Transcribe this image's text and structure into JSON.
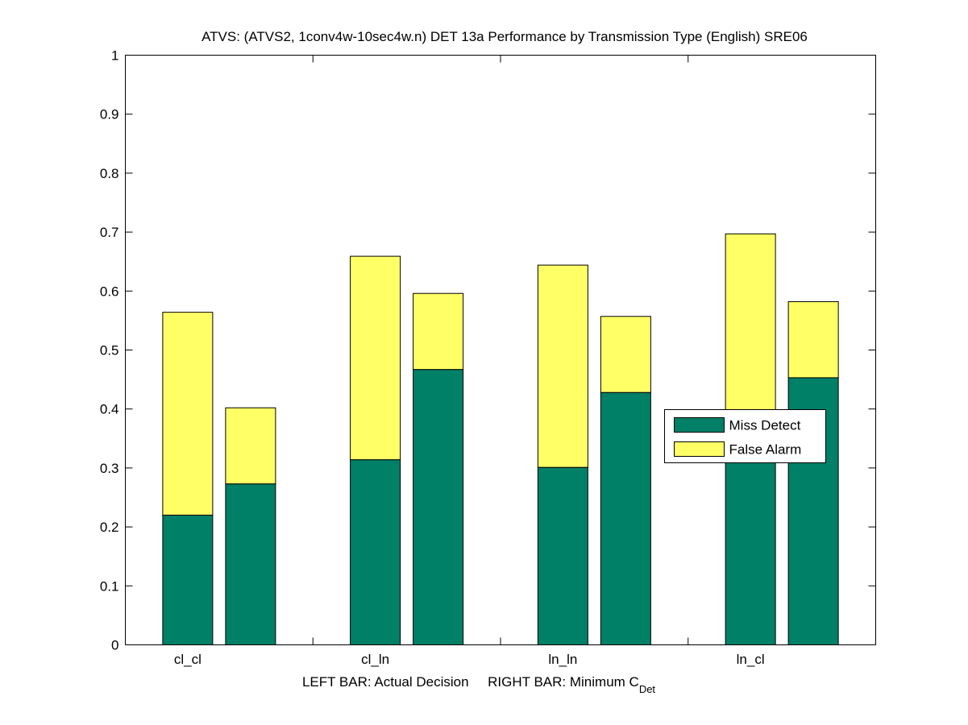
{
  "chart_data": {
    "type": "bar",
    "stacked": true,
    "title": "ATVS: (ATVS2, 1conv4w-10sec4w.n) DET 13a Performance by Transmission Type (English) SRE06",
    "xlabel": "LEFT BAR: Actual Decision     RIGHT BAR: Minimum C",
    "xlabel_sub": "Det",
    "ylabel": "",
    "ylim": [
      0,
      1
    ],
    "yticks": [
      0,
      0.1,
      0.2,
      0.3,
      0.4,
      0.5,
      0.6,
      0.7,
      0.8,
      0.9,
      1
    ],
    "ytick_labels": [
      "0",
      "0.1",
      "0.2",
      "0.3",
      "0.4",
      "0.5",
      "0.6",
      "0.7",
      "0.8",
      "0.9",
      "1"
    ],
    "categories": [
      "cl_cl",
      "cl_ln",
      "ln_ln",
      "ln_cl"
    ],
    "bars_per_category": [
      "Actual Decision",
      "Minimum C_Det"
    ],
    "series": [
      {
        "name": "Miss Detect",
        "color": "#008066",
        "actual": [
          0.22,
          0.314,
          0.301,
          0.38
        ],
        "minimum": [
          0.273,
          0.467,
          0.428,
          0.453
        ]
      },
      {
        "name": "False Alarm",
        "color": "#ffff66",
        "actual": [
          0.344,
          0.345,
          0.343,
          0.317
        ],
        "minimum": [
          0.129,
          0.129,
          0.129,
          0.129
        ]
      }
    ],
    "legend_position": "right",
    "grid": false
  }
}
